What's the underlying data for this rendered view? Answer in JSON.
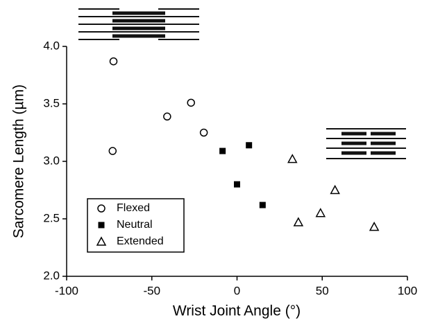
{
  "chart_data": {
    "type": "scatter",
    "x_label": "Wrist Joint Angle (°)",
    "y_label": "Sarcomere Length (µm)",
    "xlim": [
      -100,
      100
    ],
    "xticks": [
      -100,
      -50,
      0,
      50,
      100
    ],
    "ylim": [
      2.0,
      4.0
    ],
    "yticks": [
      {
        "value": 2.0,
        "label": "2.0"
      },
      {
        "value": 2.5,
        "label": "2.5"
      },
      {
        "value": 3.0,
        "label": "3.0"
      },
      {
        "value": 3.5,
        "label": "3.5"
      },
      {
        "value": 4.0,
        "label": "4.0"
      }
    ],
    "series": [
      {
        "name": "Flexed",
        "color": "#000000",
        "marker": "open-circle",
        "x": [
          -72.5,
          -73,
          -41,
          -27,
          -19.5
        ],
        "values": [
          3.87,
          3.09,
          3.39,
          3.51,
          3.25
        ]
      },
      {
        "name": "Neutral",
        "color": "#000000",
        "marker": "filled-square",
        "x": [
          -8.5,
          7,
          0,
          15
        ],
        "values": [
          3.09,
          3.14,
          2.8,
          2.62
        ]
      },
      {
        "name": "Extended",
        "color": "#000000",
        "marker": "open-triangle",
        "x": [
          32.5,
          36,
          49,
          57.5,
          80.5
        ],
        "values": [
          3.02,
          2.47,
          2.55,
          2.75,
          2.43
        ]
      }
    ]
  }
}
